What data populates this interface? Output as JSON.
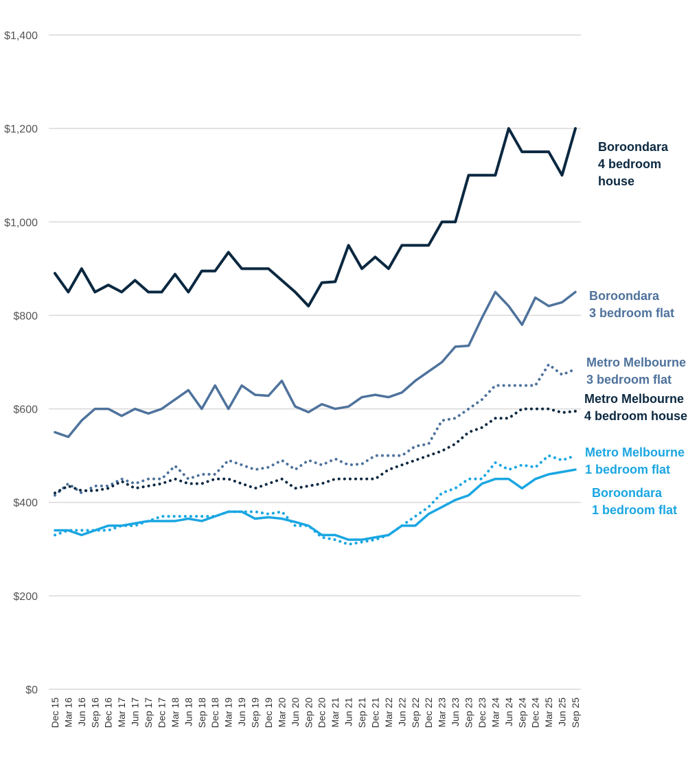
{
  "chart_data": {
    "type": "line",
    "title": "",
    "xlabel": "",
    "ylabel": "",
    "ylim": [
      0,
      1400
    ],
    "yticks": [
      0,
      200,
      400,
      600,
      800,
      1000,
      1200,
      1400
    ],
    "ytick_labels": [
      "$0",
      "$200",
      "$400",
      "$600",
      "$800",
      "$1,000",
      "$1,200",
      "$1,400"
    ],
    "grid": true,
    "legend": "inline labels at right of lines",
    "categories": [
      "Dec 15",
      "Mar 16",
      "Jun 16",
      "Sep 16",
      "Dec 16",
      "Mar 17",
      "Jun 17",
      "Sep 17",
      "Dec 17",
      "Mar 18",
      "Jun 18",
      "Sep 18",
      "Dec 18",
      "Mar 19",
      "Jun 19",
      "Sep 19",
      "Dec 19",
      "Mar 20",
      "Jun 20",
      "Sep 20",
      "Dec 20",
      "Mar 21",
      "Jun 21",
      "Sep 21",
      "Dec 21",
      "Mar 22",
      "Jun 22",
      "Sep 22",
      "Dec 22",
      "Mar 23",
      "Jun 23",
      "Sep 23",
      "Dec 23",
      "Mar 24",
      "Jun 24",
      "Sep 24",
      "Dec 24",
      "Mar 25",
      "Jun 25",
      "Sep 25"
    ],
    "series": [
      {
        "name": "Boroondara 4 bedroom house",
        "label_lines": [
          "Boroondara",
          "4 bedroom",
          "house"
        ],
        "color": "#0b2840",
        "style": "solid",
        "values": [
          890,
          850,
          900,
          850,
          865,
          850,
          875,
          850,
          850,
          888,
          850,
          895,
          895,
          935,
          900,
          900,
          900,
          875,
          850,
          820,
          870,
          872,
          950,
          900,
          925,
          900,
          950,
          950,
          950,
          1000,
          1000,
          1100,
          1100,
          1100,
          1200,
          1150,
          1150,
          1150,
          1100,
          1200
        ]
      },
      {
        "name": "Boroondara 3 bedroom flat",
        "label_lines": [
          "Boroondara",
          "3 bedroom flat"
        ],
        "color": "#4e729c",
        "style": "solid",
        "values": [
          550,
          540,
          575,
          600,
          600,
          585,
          600,
          590,
          600,
          620,
          640,
          600,
          650,
          600,
          650,
          630,
          628,
          660,
          605,
          593,
          610,
          600,
          605,
          625,
          630,
          625,
          635,
          660,
          680,
          700,
          733,
          735,
          795,
          850,
          820,
          780,
          838,
          820,
          828,
          850
        ]
      },
      {
        "name": "Metro Melbourne 3 bedroom flat",
        "label_lines": [
          "Metro Melbourne",
          "3 bedroom flat"
        ],
        "color": "#4e729c",
        "style": "dotted",
        "values": [
          415,
          440,
          420,
          435,
          435,
          450,
          440,
          450,
          450,
          478,
          450,
          460,
          460,
          490,
          480,
          470,
          475,
          490,
          470,
          490,
          480,
          493,
          480,
          482,
          500,
          500,
          500,
          520,
          525,
          575,
          580,
          600,
          620,
          650,
          650,
          650,
          650,
          695,
          673,
          685
        ]
      },
      {
        "name": "Metro Melbourne 4 bedroom house",
        "label_lines": [
          "Metro Melbourne",
          "4 bedroom house"
        ],
        "color": "#0b2840",
        "style": "dotted",
        "values": [
          420,
          435,
          425,
          425,
          430,
          445,
          430,
          435,
          440,
          450,
          440,
          440,
          450,
          450,
          440,
          430,
          440,
          450,
          430,
          435,
          440,
          450,
          450,
          450,
          450,
          470,
          480,
          490,
          500,
          510,
          525,
          550,
          560,
          580,
          580,
          600,
          600,
          600,
          592,
          595
        ]
      },
      {
        "name": "Metro Melbourne 1 bedroom flat",
        "label_lines": [
          "Metro Melbourne",
          "1 bedroom flat"
        ],
        "color": "#1aa6e2",
        "style": "dotted",
        "values": [
          330,
          340,
          340,
          340,
          340,
          350,
          350,
          360,
          370,
          370,
          370,
          370,
          370,
          380,
          380,
          380,
          375,
          380,
          350,
          350,
          325,
          320,
          310,
          315,
          320,
          330,
          350,
          370,
          390,
          420,
          430,
          450,
          450,
          485,
          470,
          480,
          475,
          500,
          490,
          500
        ]
      },
      {
        "name": "Boroondara 1 bedroom flat",
        "label_lines": [
          "Boroondara",
          "1 bedroom flat"
        ],
        "color": "#1aa6e2",
        "style": "solid",
        "values": [
          340,
          340,
          330,
          340,
          350,
          350,
          355,
          360,
          360,
          360,
          365,
          360,
          370,
          380,
          380,
          365,
          368,
          365,
          358,
          350,
          330,
          330,
          320,
          320,
          325,
          330,
          350,
          350,
          375,
          390,
          405,
          415,
          440,
          450,
          450,
          430,
          450,
          460,
          465,
          470
        ]
      }
    ]
  }
}
